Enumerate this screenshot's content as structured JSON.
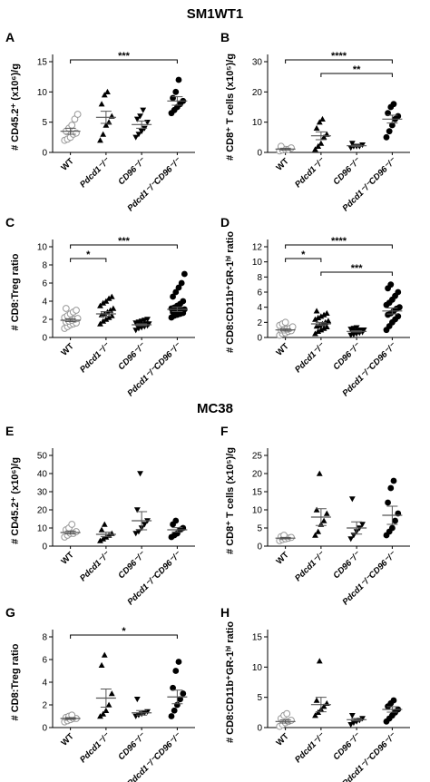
{
  "headings": [
    "SM1WT1",
    "MC38"
  ],
  "chart_data": [
    {
      "type": "dot",
      "panel": "A",
      "ylabel": "# CD45.2⁺ (x10⁶)/g",
      "categories": [
        "WT",
        "Pdcd1⁻/⁻",
        "CD96⁻/⁻",
        "Pdcd1⁻/⁻CD96⁻/⁻"
      ],
      "points": [
        [
          2.0,
          2.2,
          2.5,
          3.0,
          3.2,
          3.5,
          4.0,
          4.5,
          5.5,
          6.3
        ],
        [
          2.0,
          3.0,
          4.5,
          5.0,
          6.0,
          8.0,
          9.5,
          10.0
        ],
        [
          2.5,
          3.0,
          3.5,
          4.0,
          5.0,
          5.5,
          6.0,
          7.0
        ],
        [
          6.5,
          7.0,
          7.5,
          8.0,
          8.5,
          9.0,
          10.0,
          12.0
        ]
      ],
      "means": [
        3.5,
        5.8,
        4.6,
        8.5
      ],
      "sems": [
        0.5,
        1.0,
        0.6,
        0.7
      ],
      "ylim": [
        0,
        15
      ],
      "yticks": [
        0,
        5,
        10,
        15
      ],
      "brackets": [
        {
          "label": "***",
          "from": 0,
          "to": 3
        }
      ]
    },
    {
      "type": "dot",
      "panel": "B",
      "ylabel": "# CD8⁺ T cells (x10⁵)/g",
      "categories": [
        "WT",
        "Pdcd1⁻/⁻",
        "CD96⁻/⁻",
        "Pdcd1⁻/⁻CD96⁻/⁻"
      ],
      "points": [
        [
          0.5,
          0.8,
          1.0,
          1.0,
          1.5,
          2.0
        ],
        [
          1.0,
          2.0,
          3.0,
          5.0,
          6.0,
          8.0,
          10.0,
          11.0
        ],
        [
          1.5,
          2.0,
          2.0,
          2.0,
          2.5,
          3.0
        ],
        [
          5.0,
          7.0,
          9.0,
          11.0,
          12.0,
          13.0,
          15.0,
          16.0
        ]
      ],
      "means": [
        1.1,
        5.5,
        2.2,
        11
      ],
      "sems": [
        0.3,
        1.3,
        0.2,
        1.3
      ],
      "ylim": [
        0,
        30
      ],
      "yticks": [
        0,
        10,
        20,
        30
      ],
      "brackets": [
        {
          "label": "****",
          "from": 0,
          "to": 3
        },
        {
          "label": "**",
          "from": 1,
          "to": 3
        }
      ]
    },
    {
      "type": "dot",
      "panel": "C",
      "ylabel": "# CD8:Treg ratio",
      "categories": [
        "WT",
        "Pdcd1⁻/⁻",
        "CD96⁻/⁻",
        "Pdcd1⁻/⁻CD96⁻/⁻"
      ],
      "points": [
        [
          1.0,
          1.2,
          1.4,
          1.5,
          1.6,
          1.7,
          1.8,
          1.9,
          2.0,
          2.1,
          2.2,
          2.4,
          2.6,
          2.8,
          3.0,
          3.2
        ],
        [
          1.5,
          1.8,
          2.0,
          2.2,
          2.4,
          2.5,
          2.6,
          2.8,
          3.0,
          3.2,
          3.5,
          3.8,
          4.0,
          4.3,
          4.5
        ],
        [
          0.8,
          1.0,
          1.1,
          1.2,
          1.3,
          1.3,
          1.4,
          1.4,
          1.5,
          1.5,
          1.6,
          1.7,
          1.8,
          1.9,
          2.0
        ],
        [
          2.2,
          2.4,
          2.5,
          2.6,
          2.7,
          2.8,
          2.9,
          3.0,
          3.0,
          3.1,
          3.2,
          3.3,
          3.5,
          3.7,
          4.0,
          4.5,
          5.0,
          5.5,
          6.0,
          7.0
        ]
      ],
      "means": [
        1.9,
        2.6,
        1.4,
        3.1
      ],
      "sems": [
        0.15,
        0.25,
        0.1,
        0.25
      ],
      "ylim": [
        0,
        10
      ],
      "yticks": [
        0,
        2,
        4,
        6,
        8,
        10
      ],
      "brackets": [
        {
          "label": "***",
          "from": 0,
          "to": 3
        },
        {
          "label": "*",
          "from": 0,
          "to": 1
        }
      ]
    },
    {
      "type": "dot",
      "panel": "D",
      "ylabel": "# CD8:CD11b⁺GR-1ʰⁱ ratio",
      "categories": [
        "WT",
        "Pdcd1⁻/⁻",
        "CD96⁻/⁻",
        "Pdcd1⁻/⁻CD96⁻/⁻"
      ],
      "points": [
        [
          0.3,
          0.5,
          0.6,
          0.8,
          0.9,
          1.0,
          1.0,
          1.1,
          1.2,
          1.4,
          1.6,
          1.8,
          2.0
        ],
        [
          0.5,
          0.8,
          1.0,
          1.2,
          1.4,
          1.5,
          1.6,
          1.8,
          2.0,
          2.2,
          2.4,
          2.6,
          2.8,
          3.0,
          3.2,
          3.5
        ],
        [
          0.3,
          0.4,
          0.5,
          0.6,
          0.7,
          0.8,
          0.8,
          0.9,
          1.0,
          1.0,
          1.1,
          1.2,
          1.3
        ],
        [
          1.0,
          1.5,
          2.0,
          2.4,
          2.8,
          3.0,
          3.2,
          3.5,
          3.8,
          4.0,
          4.3,
          4.6,
          5.0,
          5.5,
          6.0,
          6.5,
          7.0
        ]
      ],
      "means": [
        1.0,
        1.8,
        0.8,
        3.5
      ],
      "sems": [
        0.15,
        0.2,
        0.08,
        0.4
      ],
      "ylim": [
        0,
        12
      ],
      "yticks": [
        0,
        2,
        4,
        6,
        8,
        10,
        12
      ],
      "brackets": [
        {
          "label": "****",
          "from": 0,
          "to": 3
        },
        {
          "label": "*",
          "from": 0,
          "to": 1
        },
        {
          "label": "***",
          "from": 1,
          "to": 3
        }
      ]
    },
    {
      "type": "dot",
      "panel": "E",
      "ylabel": "# CD45.2⁺ (x10⁶)/g",
      "categories": [
        "WT",
        "Pdcd1⁻/⁻",
        "CD96⁻/⁻",
        "Pdcd1⁻/⁻CD96⁻/⁻"
      ],
      "points": [
        [
          5,
          6,
          7,
          7,
          8,
          9,
          10,
          12
        ],
        [
          3,
          4,
          5,
          6,
          7,
          9,
          12
        ],
        [
          7,
          8,
          10,
          12,
          14,
          20,
          40
        ],
        [
          5,
          6,
          7,
          9,
          10,
          12,
          14
        ]
      ],
      "means": [
        7.5,
        6.5,
        14,
        9
      ],
      "sems": [
        0.8,
        1.2,
        5,
        1.2
      ],
      "ylim": [
        0,
        50
      ],
      "yticks": [
        0,
        10,
        20,
        30,
        40,
        50
      ],
      "brackets": []
    },
    {
      "type": "dot",
      "panel": "F",
      "ylabel": "# CD8⁺ T cells (x10⁵)/g",
      "categories": [
        "WT",
        "Pdcd1⁻/⁻",
        "CD96⁻/⁻",
        "Pdcd1⁻/⁻CD96⁻/⁻"
      ],
      "points": [
        [
          1.5,
          1.8,
          2.0,
          2.2,
          2.4,
          2.6,
          3.0
        ],
        [
          3,
          4,
          6,
          7,
          9,
          10,
          20
        ],
        [
          2,
          3,
          4,
          5,
          6,
          13
        ],
        [
          3,
          4,
          5,
          7,
          9,
          12,
          16,
          18
        ]
      ],
      "means": [
        2.2,
        8,
        5,
        8.5
      ],
      "sems": [
        0.2,
        2.3,
        1.7,
        2.5
      ],
      "ylim": [
        0,
        25
      ],
      "yticks": [
        0,
        5,
        10,
        15,
        20,
        25
      ],
      "brackets": []
    },
    {
      "type": "dot",
      "panel": "G",
      "ylabel": "# CD8:Treg ratio",
      "categories": [
        "WT",
        "Pdcd1⁻/⁻",
        "CD96⁻/⁻",
        "Pdcd1⁻/⁻CD96⁻/⁻"
      ],
      "points": [
        [
          0.5,
          0.6,
          0.7,
          0.8,
          0.8,
          0.9,
          1.0,
          1.1
        ],
        [
          1.0,
          1.2,
          1.5,
          2.0,
          3.0,
          5.5,
          6.4
        ],
        [
          1.0,
          1.1,
          1.2,
          1.3,
          1.4,
          2.5
        ],
        [
          1.0,
          1.5,
          2.0,
          2.5,
          3.0,
          3.5,
          5.0,
          5.8
        ]
      ],
      "means": [
        0.8,
        2.6,
        1.3,
        2.7
      ],
      "sems": [
        0.08,
        0.8,
        0.2,
        0.6
      ],
      "ylim": [
        0,
        8
      ],
      "yticks": [
        0,
        2,
        4,
        6,
        8
      ],
      "brackets": [
        {
          "label": "*",
          "from": 0,
          "to": 3
        }
      ]
    },
    {
      "type": "dot",
      "panel": "H",
      "ylabel": "# CD8:CD11b⁺GR-1ʰⁱ ratio",
      "categories": [
        "WT",
        "Pdcd1⁻/⁻",
        "CD96⁻/⁻",
        "Pdcd1⁻/⁻CD96⁻/⁻"
      ],
      "points": [
        [
          0.2,
          0.5,
          0.8,
          1.0,
          1.2,
          1.5,
          2.0,
          2.3
        ],
        [
          2.0,
          2.5,
          3.0,
          3.5,
          4.0,
          4.5,
          11.0
        ],
        [
          0.5,
          0.8,
          1.0,
          1.2,
          1.5,
          2.0
        ],
        [
          1.0,
          1.5,
          2.0,
          2.5,
          3.0,
          3.5,
          4.0,
          4.5
        ]
      ],
      "means": [
        1.0,
        3.8,
        1.3,
        3.0
      ],
      "sems": [
        0.25,
        1.2,
        0.2,
        0.45
      ],
      "ylim": [
        0,
        15
      ],
      "yticks": [
        0,
        5,
        10,
        15
      ],
      "brackets": []
    }
  ]
}
